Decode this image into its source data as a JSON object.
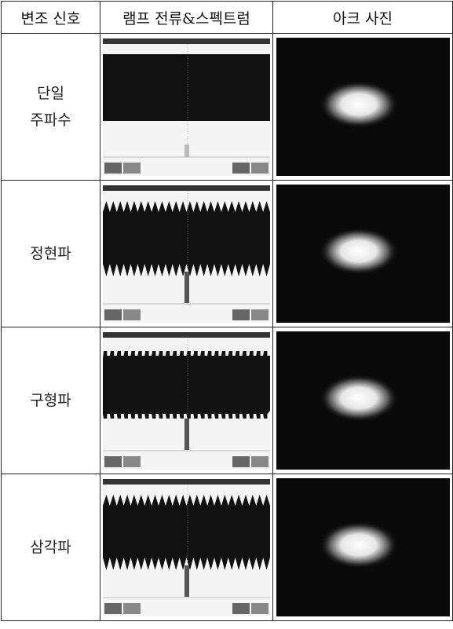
{
  "table": {
    "header": [
      "변조 신호",
      "램프 전류&스펙트럼",
      "아크 사진"
    ],
    "rows": [
      {
        "signal": [
          "단일",
          "주파수"
        ]
      },
      {
        "signal": [
          "정현파"
        ]
      },
      {
        "signal": [
          "구형파"
        ]
      },
      {
        "signal": [
          "삼각파"
        ]
      }
    ]
  }
}
